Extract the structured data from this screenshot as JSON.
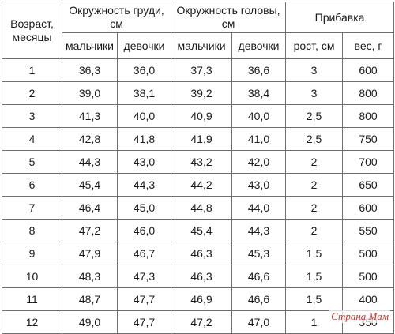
{
  "table": {
    "age_header": "Возраст, месяцы",
    "chest_header": "Окружность груди, см",
    "head_header": "Окружность головы, см",
    "gain_header": "Прибавка",
    "sub_headers": [
      "мальчики",
      "девочки",
      "мальчики",
      "девочки",
      "рост, см",
      "вес, г"
    ],
    "rows": [
      [
        "1",
        "36,3",
        "36,0",
        "37,3",
        "36,6",
        "3",
        "600"
      ],
      [
        "2",
        "39,0",
        "38,1",
        "39,2",
        "38,4",
        "3",
        "800"
      ],
      [
        "3",
        "41,3",
        "40,0",
        "40,9",
        "40,0",
        "2,5",
        "800"
      ],
      [
        "4",
        "42,8",
        "41,8",
        "41,9",
        "41,0",
        "2,5",
        "750"
      ],
      [
        "5",
        "44,3",
        "43,0",
        "43,2",
        "42,0",
        "2",
        "700"
      ],
      [
        "6",
        "45,4",
        "44,3",
        "44,2",
        "43,0",
        "2",
        "650"
      ],
      [
        "7",
        "46,4",
        "45,0",
        "44,8",
        "44,0",
        "2",
        "600"
      ],
      [
        "8",
        "47,2",
        "46,0",
        "45,4",
        "44,3",
        "2",
        "550"
      ],
      [
        "9",
        "47,9",
        "46,7",
        "46,3",
        "45,3",
        "1,5",
        "500"
      ],
      [
        "10",
        "48,3",
        "47,3",
        "46,3",
        "46,6",
        "1,5",
        "500"
      ],
      [
        "11",
        "48,7",
        "47,7",
        "46,9",
        "46,6",
        "1,5",
        "400"
      ],
      [
        "12",
        "49,0",
        "47,7",
        "47,2",
        "47,0",
        "1",
        "350"
      ]
    ]
  },
  "watermark": "Страна Мам"
}
